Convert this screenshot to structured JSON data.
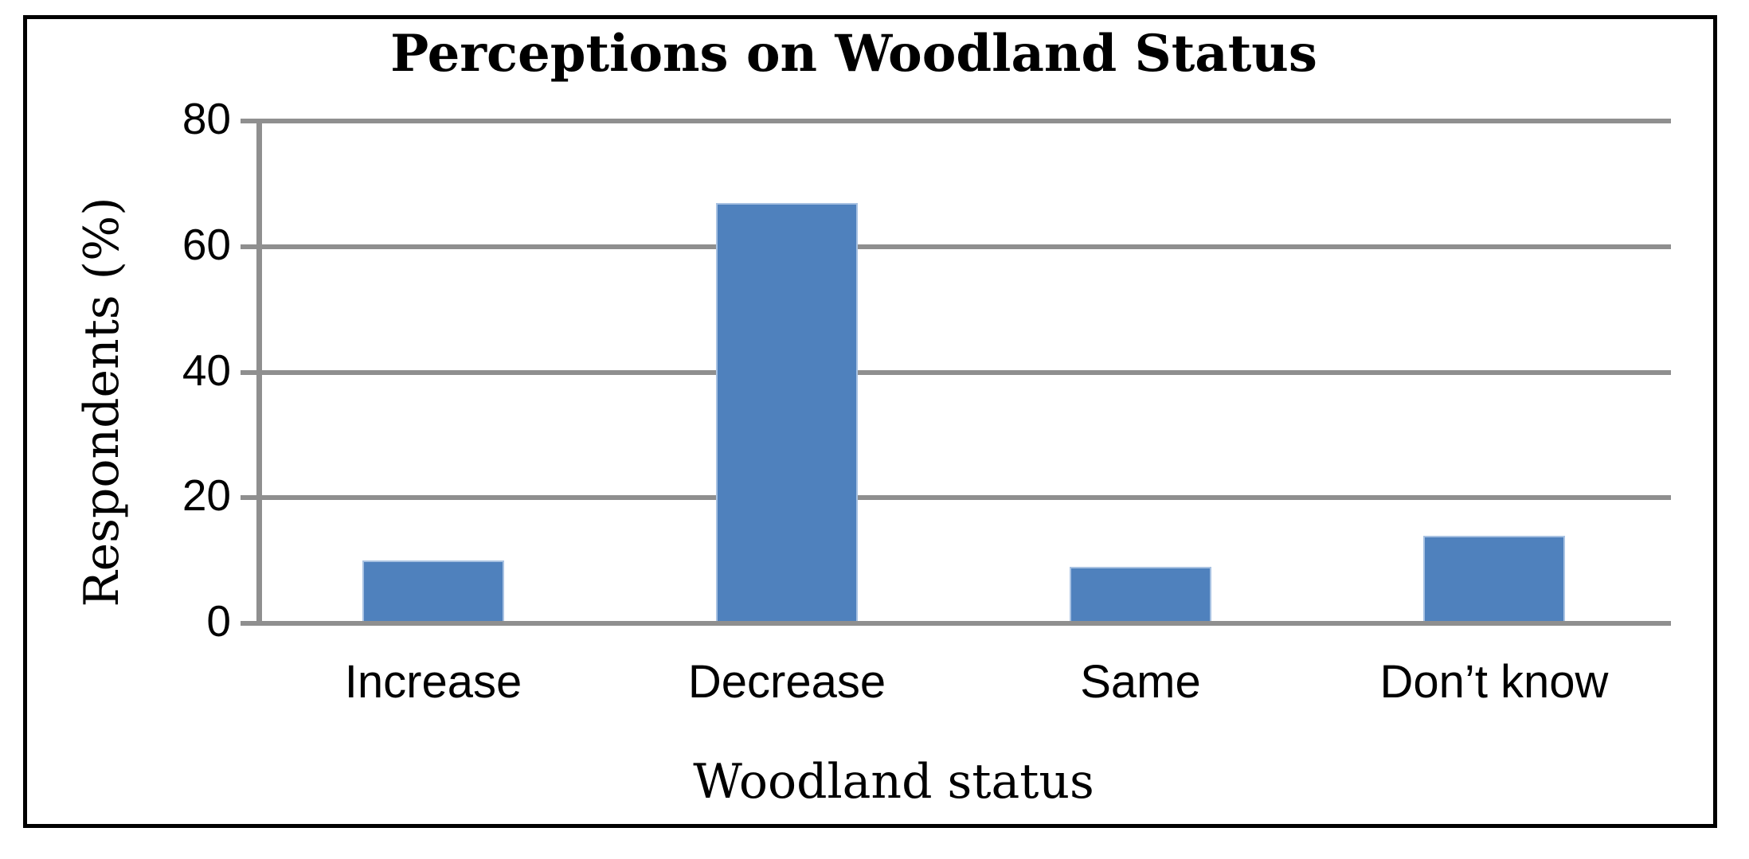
{
  "figure": {
    "background_color": "#ffffff",
    "border_color": "#000000"
  },
  "chart_data": {
    "type": "bar",
    "title": "Perceptions on Woodland Status",
    "categories": [
      "Increase",
      "Decrease",
      "Same",
      "Don’t know"
    ],
    "values": [
      10,
      67,
      9,
      14
    ],
    "xlabel": "Woodland status",
    "ylabel": "Respondents (%)",
    "ylim": [
      0,
      80
    ],
    "yticks": [
      0,
      20,
      40,
      60,
      80
    ],
    "grid": "horizontal",
    "legend": "none",
    "bar_color": "#4F81BD",
    "bar_edge_color": "#a8c2e2",
    "gridline_color": "#8f8f8f",
    "axis_line_color": "#8f8f8f",
    "text_color": "#000000"
  }
}
